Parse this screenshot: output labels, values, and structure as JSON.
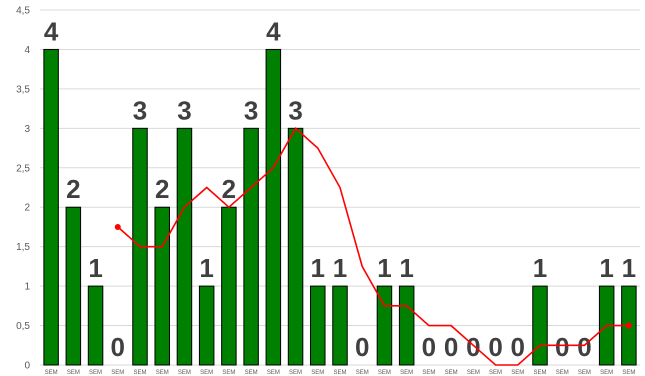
{
  "chart_data": {
    "type": "bar",
    "categories": [
      "SEM",
      "SEM",
      "SEM",
      "SEM",
      "SEM",
      "SEM",
      "SEM",
      "SEM",
      "SEM",
      "SEM",
      "SEM",
      "SEM",
      "SEM",
      "SEM",
      "SEM",
      "SEM",
      "SEM",
      "SEM",
      "SEM",
      "SEM",
      "SEM",
      "SEM",
      "SEM",
      "SEM",
      "SEM",
      "SEM",
      "SEM"
    ],
    "values": [
      4,
      2,
      1,
      0,
      3,
      2,
      3,
      1,
      2,
      3,
      4,
      3,
      1,
      1,
      0,
      1,
      1,
      0,
      0,
      0,
      0,
      0,
      1,
      0,
      0,
      1,
      1
    ],
    "moving_average": [
      null,
      null,
      null,
      1.75,
      1.5,
      1.5,
      2,
      2.25,
      2,
      2.25,
      2.5,
      3,
      2.75,
      2.25,
      1.25,
      0.75,
      0.75,
      0.5,
      0.5,
      0.25,
      0,
      0,
      0.25,
      0.25,
      0.25,
      0.5,
      0.5
    ],
    "y_ticks": [
      "0",
      "0,5",
      "1",
      "1,5",
      "2",
      "2,5",
      "3",
      "3,5",
      "4",
      "4,5"
    ],
    "ylim": [
      0,
      4.5
    ],
    "grid": true,
    "colors": {
      "bar_fill": "#008000",
      "bar_stroke": "#000000",
      "line": "#ff0000",
      "gridline": "#d9d9d9",
      "label": "#404040"
    }
  }
}
